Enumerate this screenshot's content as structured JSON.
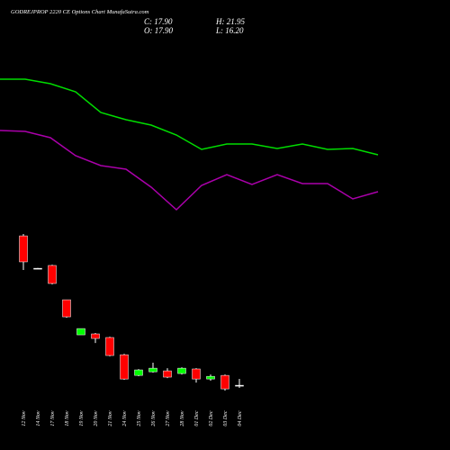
{
  "chart_data": {
    "type": "candlestick",
    "title": "GODREJPROP 2220  CE Options  Chart MunafaSutra.com",
    "stats": [
      "C: 17.90",
      "H: 21.95",
      "O: 17.90",
      "L: 16.20"
    ],
    "categories": [
      "12 Nov",
      "14 Nov",
      "17 Nov",
      "18 Nov",
      "19 Nov",
      "20 Nov",
      "21 Nov",
      "24 Nov",
      "25 Nov",
      "26 Nov",
      "27 Nov",
      "28 Nov",
      "01 Dec",
      "02 Dec",
      "03 Dec",
      "04 Dec"
    ],
    "open": [
      113.3,
      92.6,
      94.4,
      72.5,
      50.1,
      50.7,
      48.4,
      37.4,
      24.2,
      26.5,
      27.1,
      25.4,
      28.3,
      21.9,
      24.2,
      17.9
    ],
    "high": [
      114.5,
      92.8,
      94.9,
      72.5,
      54.1,
      51.3,
      48.9,
      38.0,
      28.2,
      32.3,
      28.8,
      29.4,
      28.8,
      24.8,
      24.8,
      21.95
    ],
    "low": [
      91.5,
      92.2,
      82.3,
      61.0,
      50.1,
      44.9,
      36.4,
      21.4,
      23.7,
      26.0,
      22.5,
      24.8,
      19.6,
      20.8,
      14.5,
      16.2
    ],
    "close": [
      96.7,
      92.6,
      82.9,
      61.6,
      54.1,
      47.8,
      36.9,
      21.9,
      27.7,
      28.8,
      23.1,
      28.8,
      21.9,
      23.6,
      15.6,
      17.9
    ],
    "up_color": "#00ff00",
    "down_color": "#ff0000",
    "flat_color": "#ffffff",
    "lines": [
      {
        "color": "#00dd00",
        "values": [
          100,
          100,
          97.5,
          93,
          81.5,
          77.5,
          74.5,
          69,
          61,
          64,
          64,
          61.5,
          64,
          61,
          61.5,
          58
        ]
      },
      {
        "color": "#aa00aa",
        "values": [
          71.5,
          71,
          67.5,
          57.5,
          52,
          50,
          40,
          27.5,
          41,
          47,
          41.5,
          47,
          42,
          42,
          33.5,
          37.5
        ]
      }
    ]
  }
}
